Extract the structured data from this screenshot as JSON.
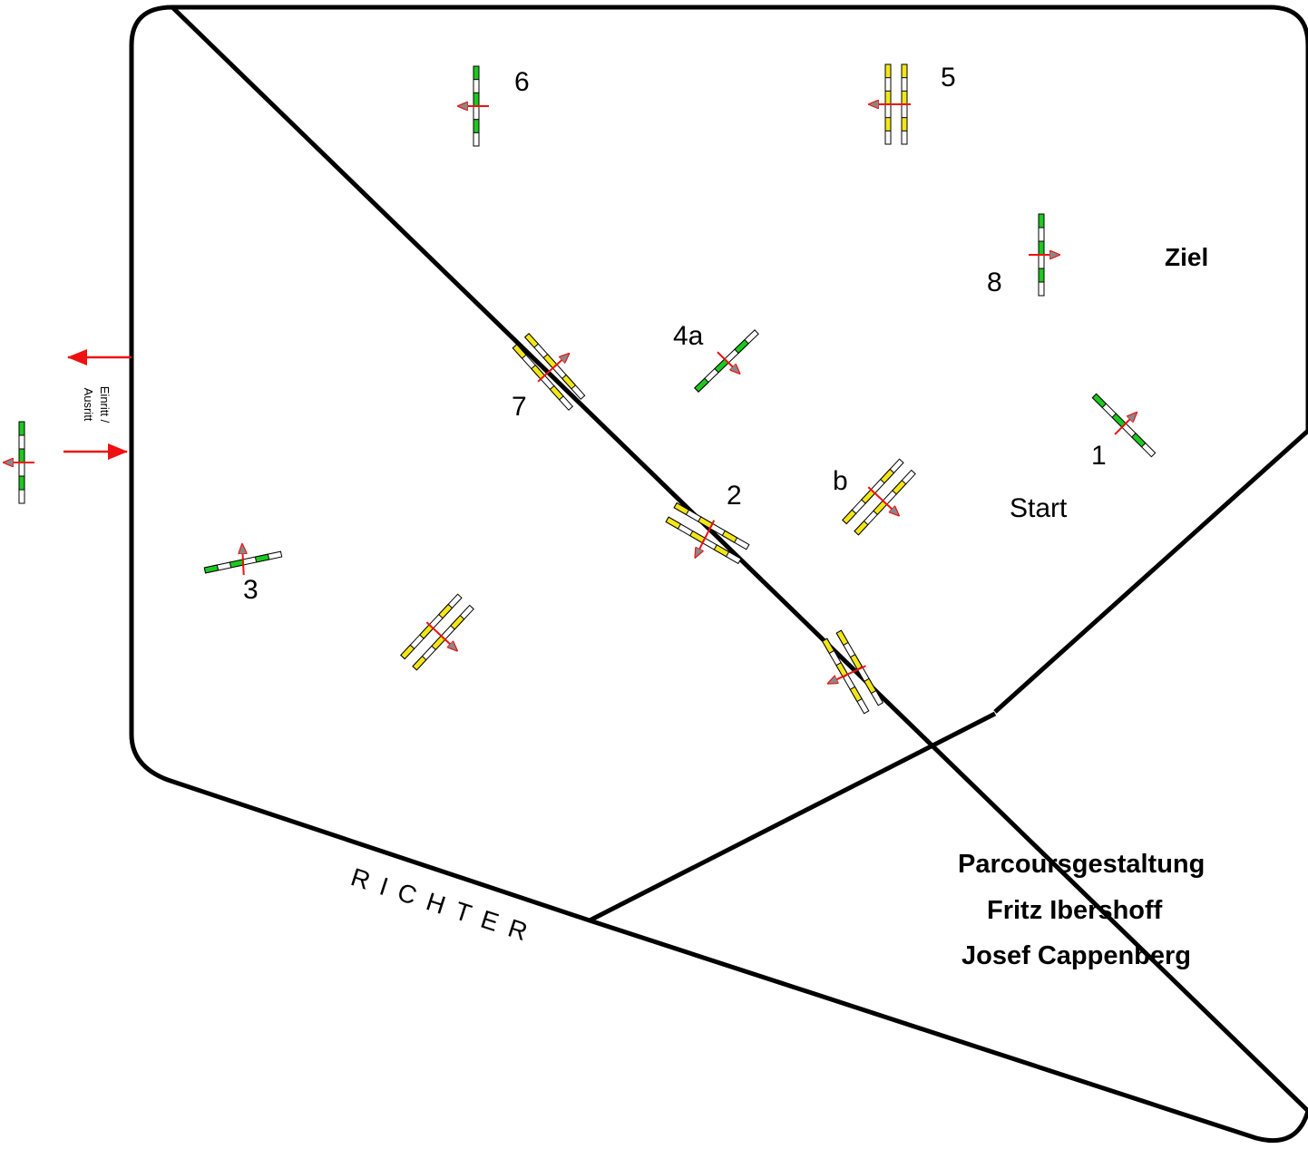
{
  "colors": {
    "outline": "#000000",
    "arrow": "#ee1111",
    "arrow_head_fill": "#888888",
    "pole_green": "#1ec81e",
    "pole_yellow": "#f2e61a",
    "pole_white": "#ffffff"
  },
  "labels": {
    "start": "Start",
    "finish": "Ziel",
    "judge": "RICHTER",
    "entry_line1": "Einritt /",
    "entry_line2": "Ausritt"
  },
  "credits": {
    "heading": "Parcoursgestaltung",
    "designer_1": "Fritz Ibershoff",
    "designer_2": "Josef Cappenberg"
  },
  "obstacles": [
    {
      "number": "1",
      "kind": "vertical",
      "pole_color": "green"
    },
    {
      "number": "2",
      "kind": "oxer",
      "pole_color": "yellow"
    },
    {
      "number": "3",
      "kind": "vertical",
      "pole_color": "green"
    },
    {
      "number": "4a",
      "kind": "vertical",
      "pole_color": "green"
    },
    {
      "number": "b",
      "kind": "oxer",
      "pole_color": "yellow"
    },
    {
      "number": "5",
      "kind": "oxer",
      "pole_color": "yellow"
    },
    {
      "number": "6",
      "kind": "vertical",
      "pole_color": "green"
    },
    {
      "number": "7",
      "kind": "oxer",
      "pole_color": "yellow"
    },
    {
      "number": "8",
      "kind": "vertical",
      "pole_color": "green"
    },
    {
      "number": "",
      "kind": "oxer",
      "pole_color": "yellow"
    },
    {
      "number": "",
      "kind": "oxer",
      "pole_color": "yellow"
    },
    {
      "number": "",
      "kind": "vertical",
      "pole_color": "green"
    }
  ]
}
